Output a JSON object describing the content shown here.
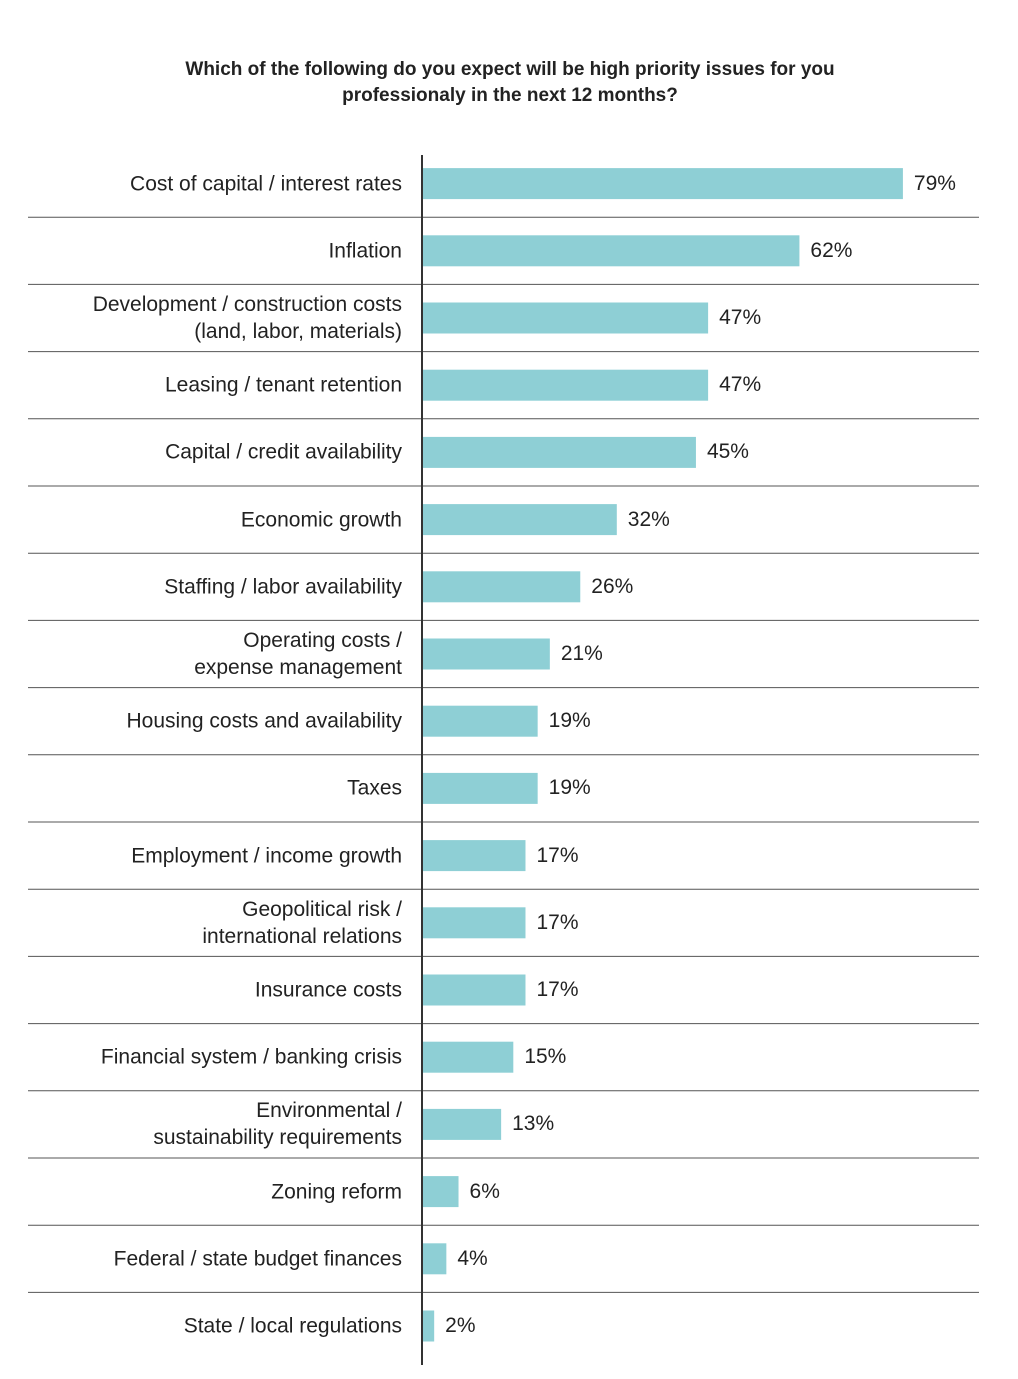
{
  "chart_data": {
    "type": "barh",
    "title": "Which of the following do you expect will be high priority issues for you professionaly in the next 12 months?",
    "categories": [
      "Cost of capital / interest rates",
      "Inflation",
      "Development / construction costs\n(land, labor, materials)",
      "Leasing / tenant retention",
      "Capital / credit availability",
      "Economic growth",
      "Staffing / labor availability",
      "Operating costs /\nexpense management",
      "Housing costs and availability",
      "Taxes",
      "Employment / income growth",
      "Geopolitical risk /\ninternational relations",
      "Insurance costs",
      "Financial system / banking crisis",
      "Environmental /\nsustainability requirements",
      "Zoning reform",
      "Federal / state budget finances",
      "State / local regulations"
    ],
    "values": [
      79,
      62,
      47,
      47,
      45,
      32,
      26,
      21,
      19,
      19,
      17,
      17,
      17,
      15,
      13,
      6,
      4,
      2
    ],
    "value_labels": [
      "79%",
      "62%",
      "47%",
      "47%",
      "45%",
      "32%",
      "26%",
      "21%",
      "19%",
      "19%",
      "17%",
      "17%",
      "17%",
      "15%",
      "13%",
      "6%",
      "4%",
      "2%"
    ],
    "color": "#8ecfd5",
    "xlim": [
      0,
      80
    ]
  }
}
